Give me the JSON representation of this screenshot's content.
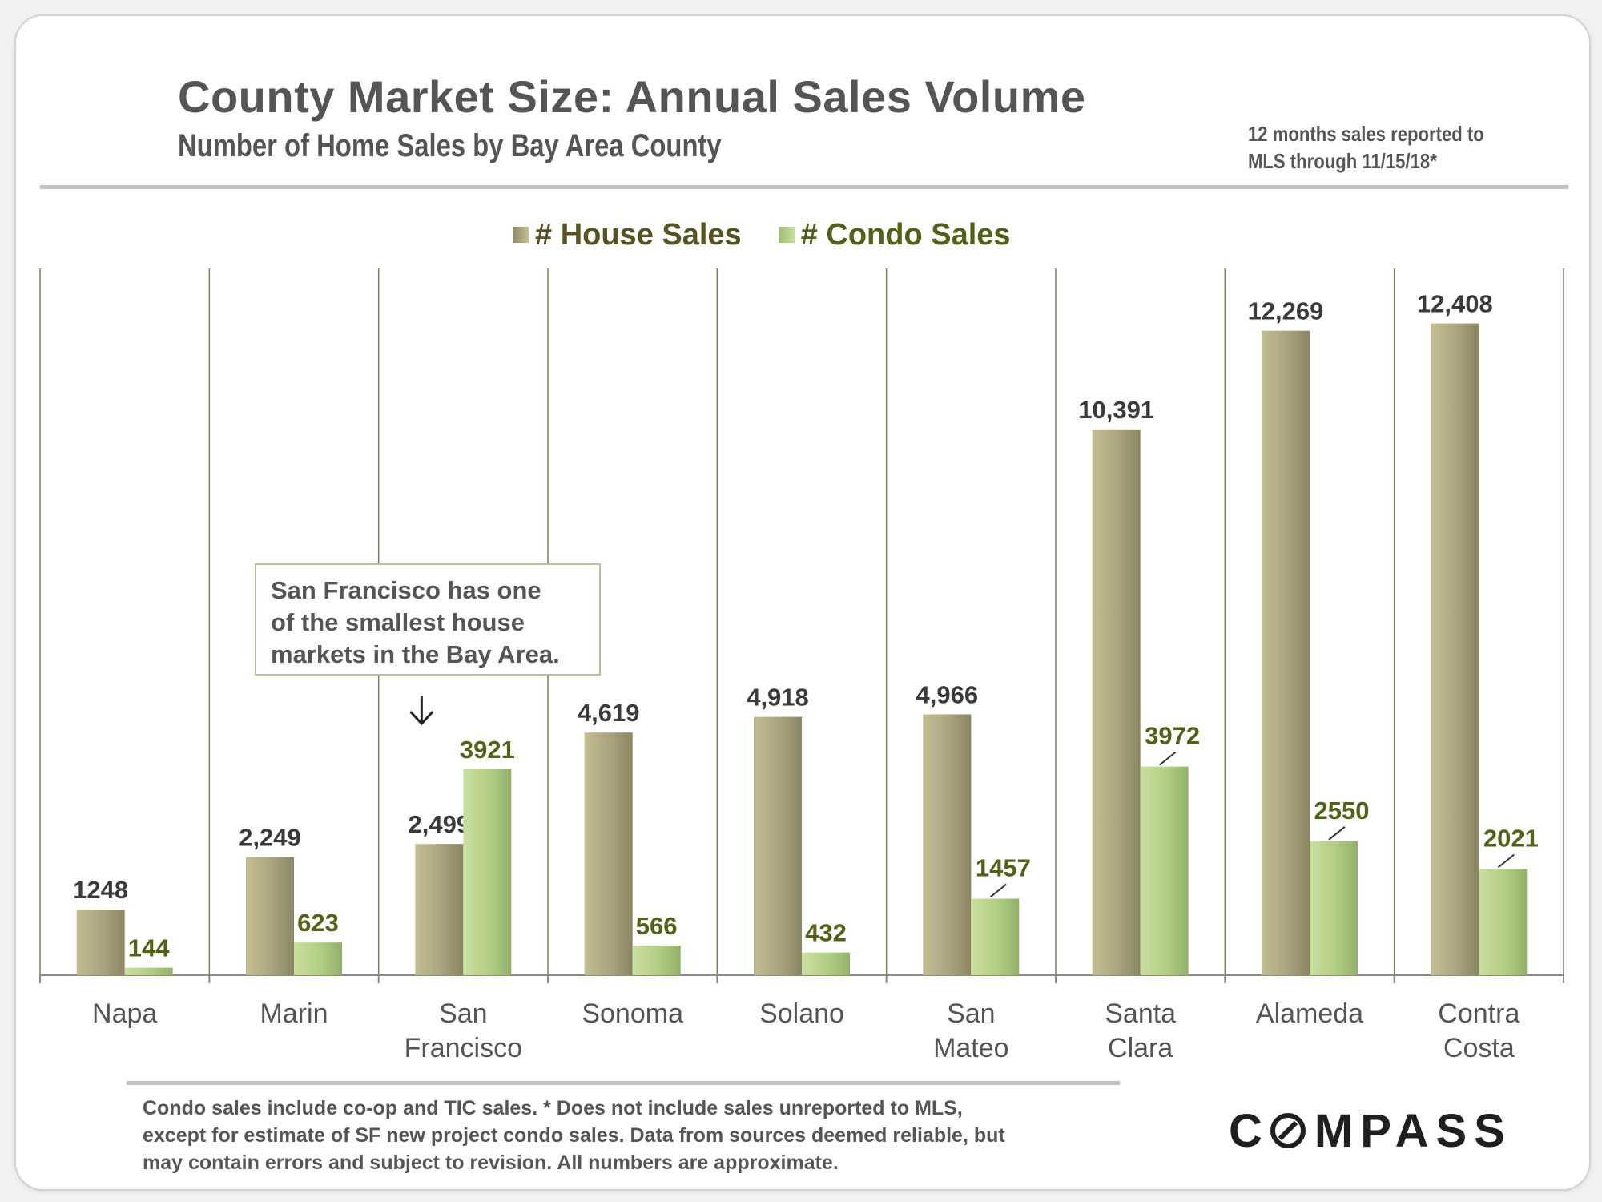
{
  "header": {
    "title": "County Market Size: Annual Sales Volume",
    "subtitle": "Number of Home Sales by Bay Area County",
    "note_lines": [
      "12 months sales reported to",
      "MLS through 11/15/18*"
    ]
  },
  "legend": {
    "house": "# House Sales",
    "condo": "# Condo Sales"
  },
  "callout": {
    "lines": [
      "San Francisco has one",
      "of the smallest house",
      "markets in the Bay Area."
    ]
  },
  "chart_data": {
    "type": "bar",
    "title": "County Market Size: Annual Sales Volume",
    "xlabel": "",
    "ylabel": "",
    "ylim": [
      0,
      13500
    ],
    "grid": false,
    "legend_position": "top-center",
    "categories": [
      [
        "Napa"
      ],
      [
        "Marin"
      ],
      [
        "San",
        "Francisco"
      ],
      [
        "Sonoma"
      ],
      [
        "Solano"
      ],
      [
        "San",
        "Mateo"
      ],
      [
        "Santa",
        "Clara"
      ],
      [
        "Alameda"
      ],
      [
        "Contra",
        "Costa"
      ]
    ],
    "series": [
      {
        "name": "# House Sales",
        "values": [
          1248,
          2249,
          2499,
          4619,
          4918,
          4966,
          10391,
          12269,
          12408
        ],
        "labels": [
          "1248",
          "2,249",
          "2,499",
          "4,619",
          "4,918",
          "4,966",
          "10,391",
          "12,269",
          "12,408"
        ]
      },
      {
        "name": "# Condo Sales",
        "values": [
          144,
          623,
          3921,
          566,
          432,
          1457,
          3972,
          2550,
          2021
        ],
        "labels": [
          "144",
          "623",
          "3921",
          "566",
          "432",
          "1457",
          "3972",
          "2550",
          "2021"
        ]
      }
    ]
  },
  "footer": {
    "lines": [
      "Condo sales include co-op and TIC sales. * Does not include sales unreported to MLS,",
      "except for estimate of SF new project condo sales. Data from sources deemed reliable, but",
      "may contain errors and subject to revision. All numbers are approximate."
    ],
    "brand_left": "C",
    "brand_right": "MPASS"
  },
  "colors": {
    "house_bar": "#a8a27c",
    "condo_bar": "#b2cf86",
    "house_label": "#3a3a3a",
    "condo_label": "#4f6216",
    "axis": "#8a8a8a"
  }
}
